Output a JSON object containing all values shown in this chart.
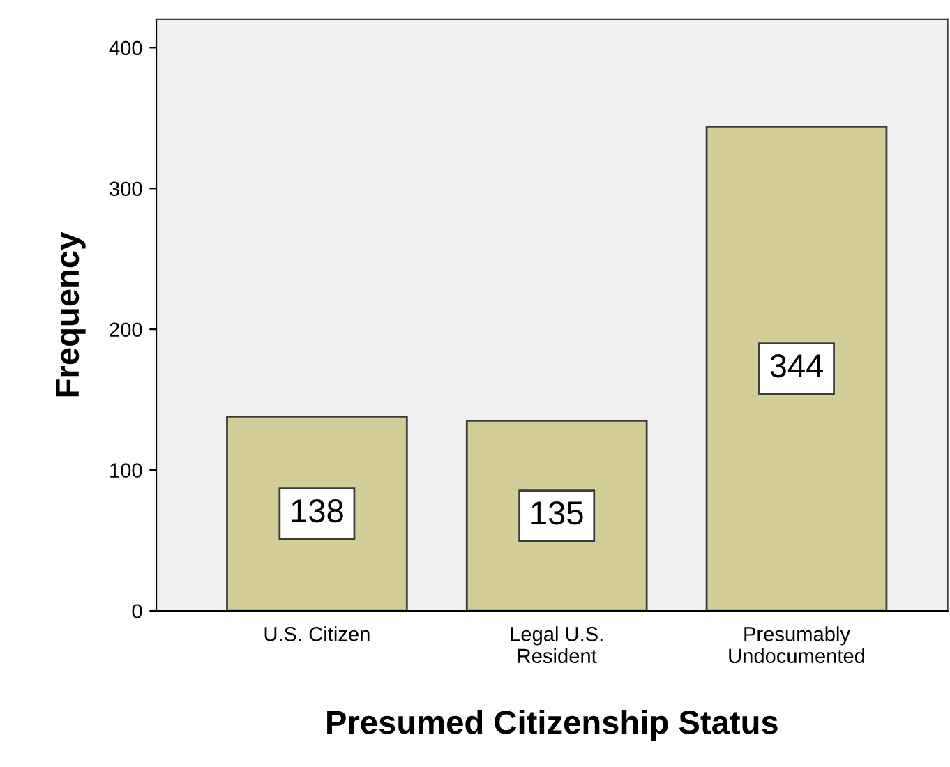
{
  "chart_data": {
    "type": "bar",
    "xlabel": "Presumed Citizenship Status",
    "ylabel": "Frequency",
    "categories": [
      "U.S. Citizen",
      "Legal U.S.\nResident",
      "Presumably\nUndocumented"
    ],
    "values": [
      138,
      135,
      344
    ],
    "color": "#d3ce97",
    "ylim": [
      0,
      420
    ],
    "yticks": [
      0,
      100,
      200,
      300,
      400
    ],
    "grid": false,
    "data_labels": true
  }
}
